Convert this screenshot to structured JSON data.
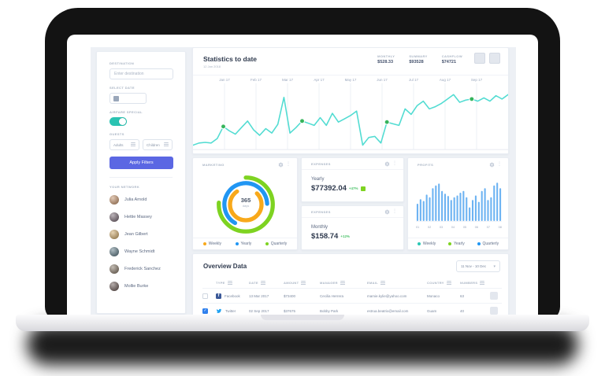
{
  "sidebar": {
    "destination_label": "DESTINATION",
    "destination_placeholder": "Enter destination",
    "select_date_label": "SELECT DATE",
    "airfare_label": "AIRFARE SPECIAL",
    "airfare_on": true,
    "guests_label": "GUESTS",
    "adults_label": "Adults",
    "children_label": "Children",
    "apply_button": "Apply Filters",
    "network_label": "YOUR NETWORK",
    "members": [
      {
        "name": "Julia Arnold",
        "avatar": "#c08a5f"
      },
      {
        "name": "Hettie Massey",
        "avatar": "#6b5a66"
      },
      {
        "name": "Jean Gilbert",
        "avatar": "#caa05a"
      },
      {
        "name": "Wayne Schmidt",
        "avatar": "#4f6d7a"
      },
      {
        "name": "Frederick Sanchez",
        "avatar": "#7a6a58"
      },
      {
        "name": "Mollie Burke",
        "avatar": "#5d4a46"
      }
    ]
  },
  "stats": {
    "title": "Statistics to date",
    "subtitle": "12 Jan 2018",
    "kpis": [
      {
        "label": "MONTHLY",
        "value": "$528.33"
      },
      {
        "label": "SUMMARY",
        "value": "$93528"
      },
      {
        "label": "CASHFLOW",
        "value": "$74721"
      }
    ]
  },
  "chart_data": [
    {
      "type": "line",
      "title": "Statistics to date",
      "x_labels": [
        "Jan 17",
        "Feb 17",
        "Mar 17",
        "Apr 17",
        "May 17",
        "Jun 17",
        "Jul 17",
        "Aug 17",
        "Sep 17"
      ],
      "values": [
        8,
        12,
        13,
        12,
        20,
        42,
        34,
        28,
        40,
        52,
        36,
        26,
        38,
        30,
        46,
        95,
        30,
        40,
        52,
        48,
        44,
        58,
        44,
        66,
        50,
        56,
        62,
        70,
        8,
        22,
        24,
        12,
        50,
        47,
        44,
        74,
        64,
        80,
        88,
        74,
        78,
        84,
        92,
        100,
        86,
        90,
        92,
        88,
        94,
        88,
        98,
        92,
        100
      ],
      "marker_indices": [
        5,
        18,
        32,
        46
      ],
      "ylim": [
        0,
        110
      ],
      "line_color": "#52dcd2",
      "marker_color": "#36b45c",
      "grid": "vertical"
    },
    {
      "type": "pie",
      "subtype": "concentric-donut",
      "title": "MARKETING",
      "center_value": "365",
      "center_unit": "days",
      "rings": [
        {
          "name": "Quarterly",
          "pct": 76,
          "color": "#7ed321",
          "start_deg": -90
        },
        {
          "name": "Yearly",
          "pct": 66,
          "color": "#2196f3",
          "start_deg": 120
        },
        {
          "name": "Weekly",
          "pct": 78,
          "color": "#f8a91b",
          "start_deg": -45
        }
      ],
      "legend": [
        {
          "label": "Weekly",
          "color": "#f8a91b"
        },
        {
          "label": "Yearly",
          "color": "#2196f3"
        },
        {
          "label": "Quarterly",
          "color": "#7ed321"
        }
      ]
    },
    {
      "type": "bar",
      "title": "PROFITS",
      "categories": [
        "01",
        "02",
        "03",
        "04",
        "05",
        "06",
        "07",
        "08"
      ],
      "values": [
        38,
        48,
        44,
        58,
        52,
        72,
        78,
        82,
        66,
        60,
        55,
        46,
        52,
        56,
        62,
        66,
        52,
        30,
        46,
        56,
        42,
        66,
        72,
        46,
        52,
        78,
        84,
        72
      ],
      "ylim": [
        0,
        100
      ],
      "bar_color": "#6db3f2",
      "legend": [
        {
          "label": "Weekly",
          "color": "#2bc7b4"
        },
        {
          "label": "Yearly",
          "color": "#7ed321"
        },
        {
          "label": "Quarterly",
          "color": "#2196f3"
        }
      ]
    }
  ],
  "marketing": {
    "title": "MARKETING"
  },
  "profits": {
    "title": "PROFITS"
  },
  "expenses": [
    {
      "title": "EXPENSES",
      "period": "Yearly",
      "value": "$77392.04",
      "delta": "+47%",
      "has_square": true
    },
    {
      "title": "EXPENSES",
      "period": "Monthly",
      "value": "$158.74",
      "delta": "+12%",
      "has_square": false
    }
  ],
  "table": {
    "title": "Overview Data",
    "date_range": "11 Nov - 10 Dec",
    "columns": [
      "TYPE",
      "DATE",
      "AMOUNT",
      "MANAGER",
      "EMAIL",
      "COUNTRY",
      "NUMBERS"
    ],
    "rows": [
      {
        "checked": false,
        "icon": "facebook",
        "type": "Facebook",
        "date": "13 Mar 2017",
        "amount": "$73400",
        "manager": "Cecilia Herrera",
        "email": "mamie.kylie@yahoo.com",
        "country": "Monaco",
        "numbers": "63"
      },
      {
        "checked": true,
        "icon": "twitter",
        "type": "Twitter",
        "date": "02 Sep 2017",
        "amount": "$37675",
        "manager": "Bobby Park",
        "email": "estrua.beatrix@email.com",
        "country": "Guam",
        "numbers": "40"
      }
    ]
  },
  "colors": {
    "accent_button": "#5b67e3",
    "toggle_on": "#2ac3b2",
    "line": "#52dcd2",
    "marker": "#36b45c",
    "bar": "#6db3f2",
    "delta_green": "#4cc36a",
    "checkbox_checked": "#2f80ed",
    "facebook": "#3b5998",
    "twitter": "#1da1f2",
    "dashboard_bg": "#edf0f5"
  }
}
